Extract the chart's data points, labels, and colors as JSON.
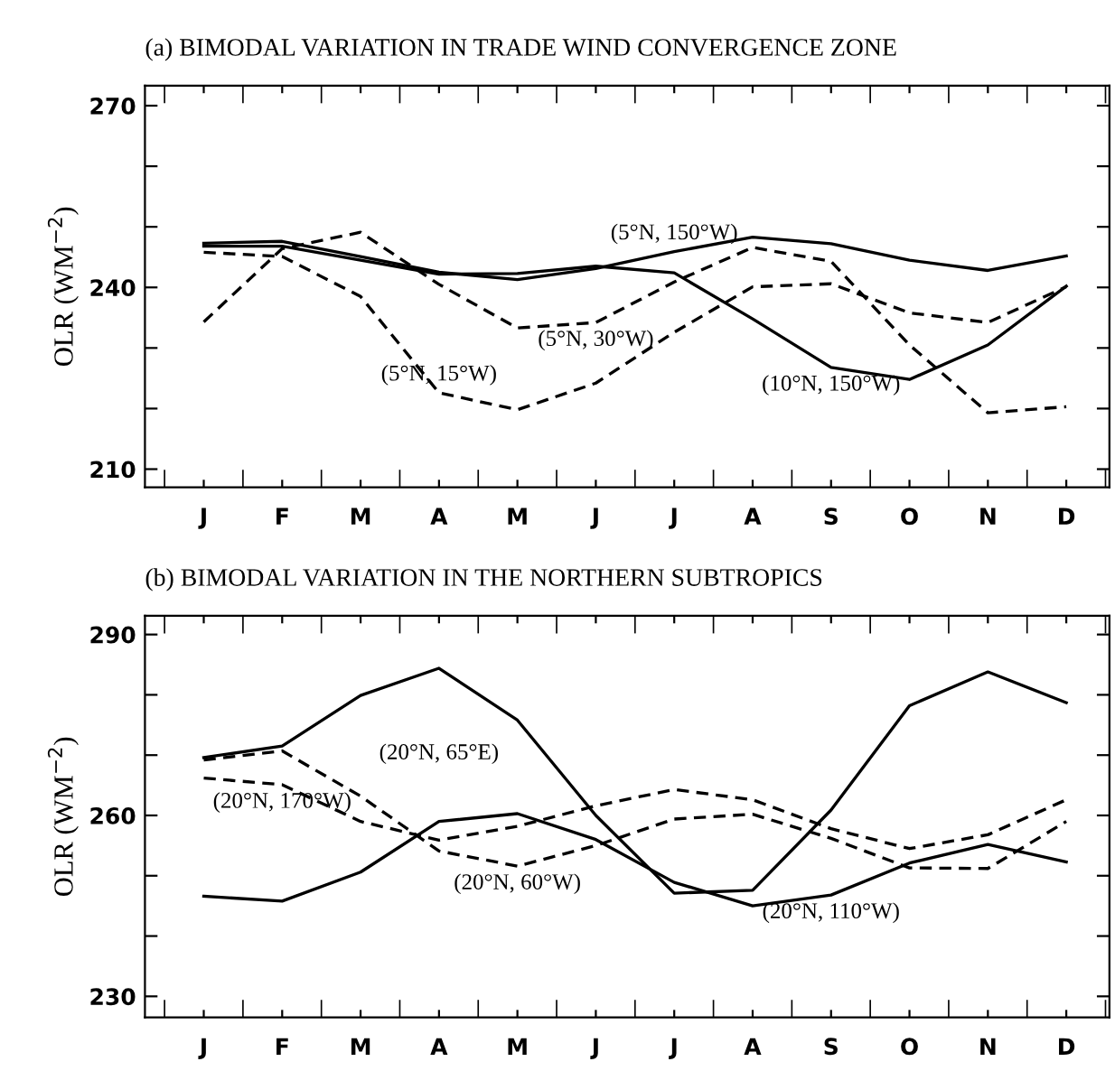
{
  "chart_data": [
    {
      "type": "line",
      "title": "(a) BIMODAL VARIATION IN TRADE WIND CONVERGENCE ZONE",
      "ylabel": "OLR (WM$^{−2}$)",
      "ylim": [
        207,
        273.3
      ],
      "categories": [
        "J",
        "F",
        "M",
        "A",
        "M",
        "J",
        "J",
        "A",
        "S",
        "O",
        "N",
        "D"
      ],
      "yticks": [
        210,
        {
          "value": 220,
          "label": null
        },
        {
          "value": 230,
          "label": null
        },
        240,
        {
          "value": 250,
          "label": null
        },
        {
          "value": 260,
          "label": null
        },
        270
      ],
      "grid": false,
      "legend": false,
      "series": [
        {
          "name": "(5°N, 150°W)",
          "color": "#000000",
          "line_style": "solid",
          "values": [
            247.3,
            247.6,
            245.1,
            242.5,
            241.3,
            243.1,
            245.9,
            248.3,
            247.2,
            244.5,
            242.8,
            245.2
          ]
        },
        {
          "name": "(10°N, 150°W)",
          "color": "#000000",
          "line_style": "solid",
          "values": [
            246.8,
            246.8,
            244.5,
            242.2,
            242.3,
            243.5,
            242.4,
            234.8,
            226.8,
            224.8,
            230.5,
            240.2
          ]
        },
        {
          "name": "(5°N, 15°W)",
          "color": "#000000",
          "line_style": "dashed",
          "values": [
            245.8,
            245.1,
            238.5,
            222.6,
            219.8,
            224.2,
            232.6,
            240.1,
            240.6,
            235.8,
            234.2,
            240.1
          ]
        },
        {
          "name": "(5°N, 30°W)",
          "color": "#000000",
          "line_style": "dashed",
          "values": [
            234.3,
            246.4,
            249.1,
            240.5,
            233.3,
            234.2,
            240.9,
            246.6,
            244.3,
            230.5,
            219.3,
            220.3
          ]
        }
      ]
    },
    {
      "type": "line",
      "title": "(b) BIMODAL VARIATION IN THE NORTHERN SUBTROPICS",
      "ylabel": "OLR (WM$^{−2}$)",
      "ylim": [
        226.5,
        293.1
      ],
      "categories": [
        "J",
        "F",
        "M",
        "A",
        "M",
        "J",
        "J",
        "A",
        "S",
        "O",
        "N",
        "D"
      ],
      "yticks": [
        230,
        {
          "value": 240,
          "label": null
        },
        {
          "value": 250,
          "label": null
        },
        260,
        {
          "value": 270,
          "label": null
        },
        {
          "value": 280,
          "label": null
        },
        290
      ],
      "grid": false,
      "legend": false,
      "series": [
        {
          "name": "(20°N, 65°E)",
          "color": "#000000",
          "line_style": "solid",
          "values": [
            269.6,
            271.5,
            279.9,
            284.4,
            275.8,
            260.0,
            247.1,
            247.6,
            260.9,
            278.2,
            283.8,
            278.7
          ]
        },
        {
          "name": "(20°N, 170°W)",
          "color": "#000000",
          "line_style": "dashed",
          "values": [
            266.2,
            265.1,
            259.0,
            255.9,
            258.2,
            261.6,
            264.3,
            262.6,
            257.8,
            254.5,
            256.8,
            262.6
          ]
        },
        {
          "name": "(20°N, 60°W)",
          "color": "#000000",
          "line_style": "dashed",
          "values": [
            269.2,
            270.7,
            263.2,
            254.1,
            251.6,
            255.0,
            259.4,
            260.2,
            256.2,
            251.3,
            251.2,
            259.0
          ]
        },
        {
          "name": "(20°N, 110°W)",
          "color": "#000000",
          "line_style": "solid",
          "values": [
            246.6,
            245.8,
            250.6,
            259.0,
            260.3,
            256.0,
            248.9,
            245.0,
            246.8,
            252.1,
            255.2,
            252.3
          ]
        }
      ]
    }
  ]
}
